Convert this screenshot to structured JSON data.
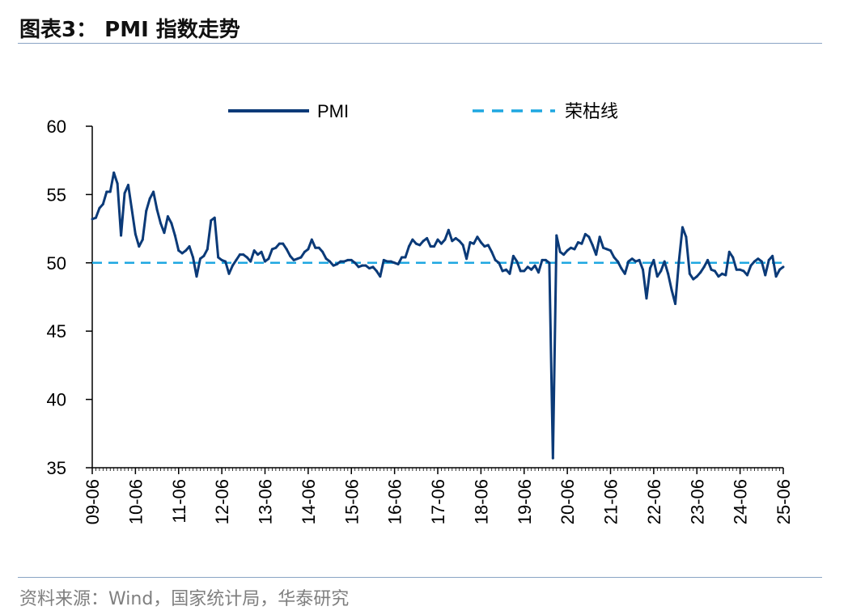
{
  "figure": {
    "title": "图表3： PMI 指数走势",
    "source": "资料来源：Wind，国家统计局，华泰研究"
  },
  "chart_data": {
    "type": "line",
    "xlabel": "",
    "ylabel": "",
    "ylim": [
      35,
      60
    ],
    "yticks": [
      35,
      40,
      45,
      50,
      55,
      60
    ],
    "x_tick_labels": [
      "09-06",
      "10-06",
      "11-06",
      "12-06",
      "13-06",
      "14-06",
      "15-06",
      "16-06",
      "17-06",
      "18-06",
      "19-06",
      "20-06",
      "21-06",
      "22-06",
      "23-06",
      "24-06",
      "25-06"
    ],
    "x_start": "2009-06",
    "x_end": "2025-06",
    "legend_position": "top",
    "grid": false,
    "colors": {
      "pmi": "#0b3a78",
      "threshold": "#1ea7e1"
    },
    "series": [
      {
        "name": "PMI",
        "style": "solid",
        "x": [
          "2009-06",
          "2009-07",
          "2009-08",
          "2009-09",
          "2009-10",
          "2009-11",
          "2009-12",
          "2010-01",
          "2010-02",
          "2010-03",
          "2010-04",
          "2010-05",
          "2010-06",
          "2010-07",
          "2010-08",
          "2010-09",
          "2010-10",
          "2010-11",
          "2010-12",
          "2011-01",
          "2011-02",
          "2011-03",
          "2011-04",
          "2011-05",
          "2011-06",
          "2011-07",
          "2011-08",
          "2011-09",
          "2011-10",
          "2011-11",
          "2011-12",
          "2012-01",
          "2012-02",
          "2012-03",
          "2012-04",
          "2012-05",
          "2012-06",
          "2012-07",
          "2012-08",
          "2012-09",
          "2012-10",
          "2012-11",
          "2012-12",
          "2013-01",
          "2013-02",
          "2013-03",
          "2013-04",
          "2013-05",
          "2013-06",
          "2013-07",
          "2013-08",
          "2013-09",
          "2013-10",
          "2013-11",
          "2013-12",
          "2014-01",
          "2014-02",
          "2014-03",
          "2014-04",
          "2014-05",
          "2014-06",
          "2014-07",
          "2014-08",
          "2014-09",
          "2014-10",
          "2014-11",
          "2014-12",
          "2015-01",
          "2015-02",
          "2015-03",
          "2015-04",
          "2015-05",
          "2015-06",
          "2015-07",
          "2015-08",
          "2015-09",
          "2015-10",
          "2015-11",
          "2015-12",
          "2016-01",
          "2016-02",
          "2016-03",
          "2016-04",
          "2016-05",
          "2016-06",
          "2016-07",
          "2016-08",
          "2016-09",
          "2016-10",
          "2016-11",
          "2016-12",
          "2017-01",
          "2017-02",
          "2017-03",
          "2017-04",
          "2017-05",
          "2017-06",
          "2017-07",
          "2017-08",
          "2017-09",
          "2017-10",
          "2017-11",
          "2017-12",
          "2018-01",
          "2018-02",
          "2018-03",
          "2018-04",
          "2018-05",
          "2018-06",
          "2018-07",
          "2018-08",
          "2018-09",
          "2018-10",
          "2018-11",
          "2018-12",
          "2019-01",
          "2019-02",
          "2019-03",
          "2019-04",
          "2019-05",
          "2019-06",
          "2019-07",
          "2019-08",
          "2019-09",
          "2019-10",
          "2019-11",
          "2019-12",
          "2020-01",
          "2020-02",
          "2020-03",
          "2020-04",
          "2020-05",
          "2020-06",
          "2020-07",
          "2020-08",
          "2020-09",
          "2020-10",
          "2020-11",
          "2020-12",
          "2021-01",
          "2021-02",
          "2021-03",
          "2021-04",
          "2021-05",
          "2021-06",
          "2021-07",
          "2021-08",
          "2021-09",
          "2021-10",
          "2021-11",
          "2021-12",
          "2022-01",
          "2022-02",
          "2022-03",
          "2022-04",
          "2022-05",
          "2022-06",
          "2022-07",
          "2022-08",
          "2022-09",
          "2022-10",
          "2022-11",
          "2022-12",
          "2023-01",
          "2023-02",
          "2023-03",
          "2023-04",
          "2023-05",
          "2023-06",
          "2023-07",
          "2023-08",
          "2023-09",
          "2023-10",
          "2023-11",
          "2023-12",
          "2024-01",
          "2024-02",
          "2024-03",
          "2024-04",
          "2024-05",
          "2024-06",
          "2024-07",
          "2024-08",
          "2024-09",
          "2024-10",
          "2024-11",
          "2024-12",
          "2025-01",
          "2025-02",
          "2025-03",
          "2025-04",
          "2025-05",
          "2025-06"
        ],
        "values": [
          53.2,
          53.3,
          54.0,
          54.3,
          55.2,
          55.2,
          56.6,
          55.8,
          52.0,
          55.1,
          55.7,
          53.9,
          52.1,
          51.2,
          51.7,
          53.8,
          54.7,
          55.2,
          53.9,
          52.9,
          52.2,
          53.4,
          52.9,
          52.0,
          50.9,
          50.7,
          50.9,
          51.2,
          50.4,
          49.0,
          50.3,
          50.5,
          51.0,
          53.1,
          53.3,
          50.4,
          50.2,
          50.1,
          49.2,
          49.8,
          50.2,
          50.6,
          50.6,
          50.4,
          50.1,
          50.9,
          50.6,
          50.8,
          50.1,
          50.3,
          51.0,
          51.1,
          51.4,
          51.4,
          51.0,
          50.5,
          50.2,
          50.3,
          50.4,
          50.8,
          51.0,
          51.7,
          51.1,
          51.1,
          50.8,
          50.3,
          50.1,
          49.8,
          49.9,
          50.1,
          50.1,
          50.2,
          50.2,
          50.0,
          49.7,
          49.8,
          49.8,
          49.6,
          49.7,
          49.4,
          49.0,
          50.2,
          50.1,
          50.1,
          50.0,
          49.9,
          50.4,
          50.4,
          51.2,
          51.7,
          51.4,
          51.3,
          51.6,
          51.8,
          51.2,
          51.2,
          51.7,
          51.4,
          51.7,
          52.4,
          51.6,
          51.8,
          51.6,
          51.3,
          50.3,
          51.5,
          51.4,
          51.9,
          51.5,
          51.2,
          51.3,
          50.8,
          50.2,
          50.0,
          49.4,
          49.5,
          49.2,
          50.5,
          50.1,
          49.4,
          49.4,
          49.7,
          49.5,
          49.8,
          49.3,
          50.2,
          50.2,
          50.0,
          35.7,
          52.0,
          50.8,
          50.6,
          50.9,
          51.1,
          51.0,
          51.5,
          51.4,
          52.1,
          51.9,
          51.3,
          50.6,
          51.9,
          51.1,
          51.0,
          50.9,
          50.4,
          50.1,
          49.6,
          49.2,
          50.1,
          50.3,
          50.1,
          50.2,
          49.5,
          47.4,
          49.6,
          50.2,
          49.0,
          49.4,
          50.1,
          49.2,
          48.0,
          47.0,
          50.1,
          52.6,
          51.9,
          49.2,
          48.8,
          49.0,
          49.3,
          49.7,
          50.2,
          49.5,
          49.4,
          49.0,
          49.2,
          49.1,
          50.8,
          50.4,
          49.5,
          49.5,
          49.4,
          49.1,
          49.8,
          50.1,
          50.3,
          50.1,
          49.1,
          50.2,
          50.5,
          49.0,
          49.5,
          49.7
        ]
      },
      {
        "name": "荣枯线",
        "style": "dashed",
        "values": [
          50,
          50
        ]
      }
    ]
  }
}
